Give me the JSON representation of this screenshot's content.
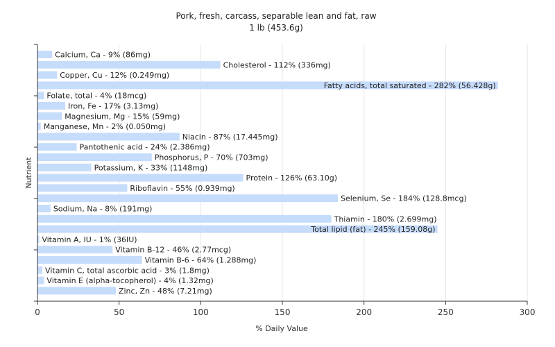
{
  "chart_data": {
    "type": "bar",
    "orientation": "horizontal",
    "title": "Pork, fresh, carcass, separable lean and fat, raw",
    "subtitle": "1 lb (453.6g)",
    "xlabel": "% Daily Value",
    "ylabel": "Nutrient",
    "xlim": [
      0,
      300
    ],
    "xticks": [
      0,
      50,
      100,
      150,
      200,
      250,
      300
    ],
    "grid": "vertical",
    "legend": "none",
    "bar_color": "#c6dcfb",
    "categories": [
      "Calcium, Ca - 9% (86mg)",
      "Cholesterol - 112% (336mg)",
      "Copper, Cu - 12% (0.249mg)",
      "Fatty acids, total saturated - 282% (56.428g)",
      "Folate, total - 4% (18mcg)",
      "Iron, Fe - 17% (3.13mg)",
      "Magnesium, Mg - 15% (59mg)",
      "Manganese, Mn - 2% (0.050mg)",
      "Niacin - 87% (17.445mg)",
      "Pantothenic acid - 24% (2.386mg)",
      "Phosphorus, P - 70% (703mg)",
      "Potassium, K - 33% (1148mg)",
      "Protein - 126% (63.10g)",
      "Riboflavin - 55% (0.939mg)",
      "Selenium, Se - 184% (128.8mcg)",
      "Sodium, Na - 8% (191mg)",
      "Thiamin - 180% (2.699mg)",
      "Total lipid (fat) - 245% (159.08g)",
      "Vitamin A, IU - 1% (36IU)",
      "Vitamin B-12 - 46% (2.77mcg)",
      "Vitamin B-6 - 64% (1.288mg)",
      "Vitamin C, total ascorbic acid - 3% (1.8mg)",
      "Vitamin E (alpha-tocopherol) - 4% (1.32mg)",
      "Zinc, Zn - 48% (7.21mg)"
    ],
    "values": [
      9,
      112,
      12,
      282,
      4,
      17,
      15,
      2,
      87,
      24,
      70,
      33,
      126,
      55,
      184,
      8,
      180,
      245,
      1,
      46,
      64,
      3,
      4,
      48
    ]
  }
}
